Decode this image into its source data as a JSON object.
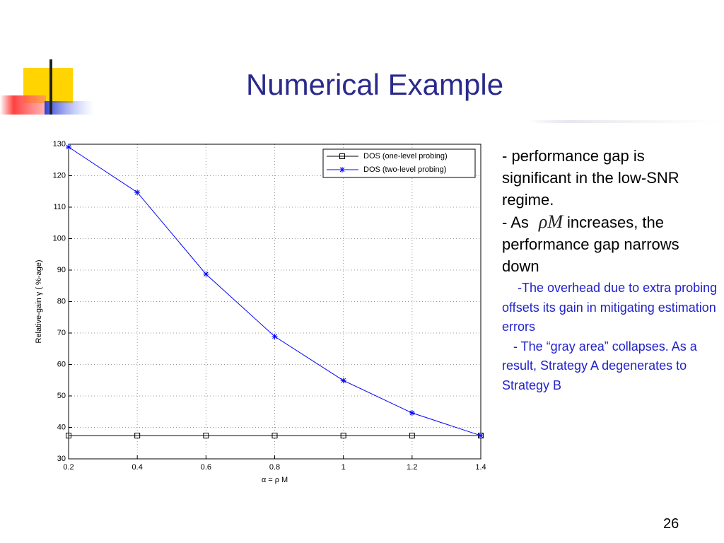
{
  "slide": {
    "title": "Numerical Example",
    "bullets": [
      "- performance gap is significant in the low-SNR regime.",
      {
        "before": "-  As",
        "math": "ρM",
        "after": "increases, the performance gap narrows down"
      }
    ],
    "subbullets": [
      "-The overhead due to extra probing offsets its gain in mitigating estimation errors",
      "- The “gray area” collapses. As a result, Strategy A degenerates to Strategy B"
    ],
    "page_number": "26"
  },
  "chart_data": {
    "type": "line",
    "xlabel": "α = ρ M",
    "ylabel": "Relative-gain γ ( %-age)",
    "x": [
      0.2,
      0.4,
      0.6,
      0.8,
      1,
      1.2,
      1.4
    ],
    "series": [
      {
        "name": "DOS (one-level probing)",
        "color": "#000000",
        "marker": "square",
        "values": [
          37.4,
          37.4,
          37.4,
          37.4,
          37.4,
          37.4,
          37.4
        ]
      },
      {
        "name": "DOS (two-level probing)",
        "color": "#0000ff",
        "marker": "asterisk",
        "values": [
          129.1,
          114.7,
          88.7,
          68.9,
          54.9,
          44.6,
          37.4
        ]
      }
    ],
    "xlim": [
      0.2,
      1.4
    ],
    "ylim": [
      30,
      130
    ],
    "xticks": [
      0.2,
      0.4,
      0.6,
      0.8,
      1,
      1.2,
      1.4
    ],
    "yticks": [
      30,
      40,
      50,
      60,
      70,
      80,
      90,
      100,
      110,
      120,
      130
    ],
    "grid": true,
    "legend": "upper right"
  }
}
